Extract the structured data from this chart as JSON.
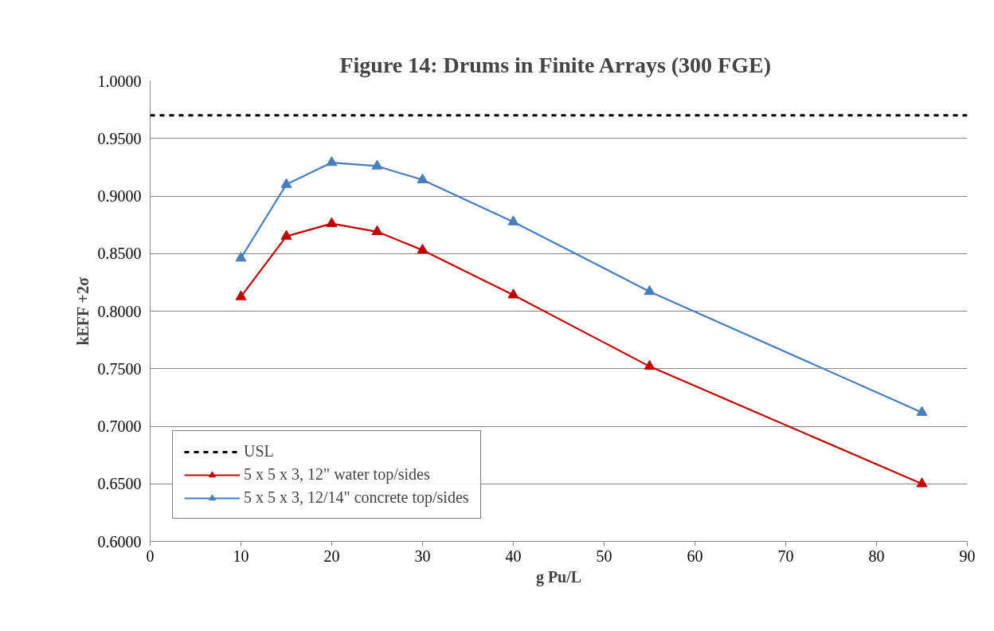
{
  "chart_data": {
    "type": "line",
    "title": "Figure 14:  Drums in Finite Arrays (300 FGE)",
    "xlabel": "g Pu/L",
    "ylabel": "kEFF +2σ",
    "x": [
      10,
      15,
      20,
      25,
      30,
      40,
      55,
      85
    ],
    "series": [
      {
        "name": "5 x 5 x 3, 12\" water top/sides",
        "color": "#c00000",
        "values": [
          0.8125,
          0.865,
          0.876,
          0.869,
          0.853,
          0.814,
          0.752,
          0.65
        ]
      },
      {
        "name": "5 x 5 x 3, 12/14\" concrete top/sides",
        "color": "#4a7ebb",
        "values": [
          0.846,
          0.91,
          0.929,
          0.926,
          0.914,
          0.8775,
          0.817,
          0.712
        ]
      }
    ],
    "ref_lines": [
      {
        "axis": "y",
        "value": 0.97,
        "label": "USL",
        "color": "#000000",
        "line_style": "dashed"
      }
    ],
    "xlim": [
      0,
      90
    ],
    "xticks": [
      0,
      10,
      20,
      30,
      40,
      50,
      60,
      70,
      80,
      90
    ],
    "ylim": [
      0.6,
      1.0
    ],
    "yticks": [
      {
        "value": 0.6,
        "label": "0.6000"
      },
      {
        "value": 0.65,
        "label": "0.6500"
      },
      {
        "value": 0.7,
        "label": "0.7000"
      },
      {
        "value": 0.75,
        "label": "0.7500"
      },
      {
        "value": 0.8,
        "label": "0.8000"
      },
      {
        "value": 0.85,
        "label": "0.8500"
      },
      {
        "value": 0.9,
        "label": "0.9000"
      },
      {
        "value": 0.95,
        "label": "0.9500"
      },
      {
        "value": 1.0,
        "label": "1.0000"
      }
    ],
    "grid": "y",
    "legend": "bottom left",
    "marker": "triangle",
    "line_style": "solid"
  }
}
